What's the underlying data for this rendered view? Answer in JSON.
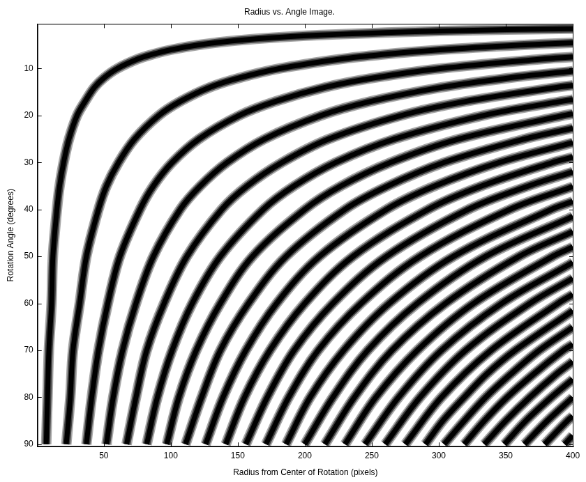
{
  "chart_data": {
    "type": "line",
    "title": "Radius vs. Angle Image.",
    "x_label": "Radius from Center of Rotation (pixels)",
    "y_label": "Rotation Angle (degrees)",
    "xlim": [
      0.5,
      400.5
    ],
    "ylim": [
      90.5,
      0.5
    ],
    "xticks": [
      50,
      100,
      150,
      200,
      250,
      300,
      350,
      400
    ],
    "yticks": [
      10,
      20,
      30,
      40,
      50,
      60,
      70,
      80,
      90
    ],
    "grid": false,
    "color": "#000000",
    "series": [
      {
        "x": [
          400,
          301,
          201,
          150,
          120,
          100,
          86,
          75,
          60,
          50,
          43,
          36,
          30,
          24,
          20,
          17,
          15,
          12,
          11,
          9,
          8,
          7
        ],
        "y": [
          1.5,
          2,
          3,
          4,
          5,
          6,
          7,
          8,
          10,
          12,
          14,
          17,
          20,
          25,
          30,
          35,
          40,
          50,
          60,
          70,
          80,
          90
        ]
      },
      {
        "x": [
          400,
          361,
          301,
          258,
          226,
          181,
          151,
          129,
          107,
          91,
          73,
          61,
          52,
          46,
          37,
          32,
          27,
          25,
          22
        ],
        "y": [
          4.51,
          5,
          6,
          7,
          8,
          10,
          12,
          14,
          17,
          20,
          25,
          30,
          35,
          40,
          50,
          60,
          70,
          80,
          90
        ]
      },
      {
        "x": [
          400,
          376,
          301,
          251,
          215,
          178,
          151,
          121,
          101,
          87,
          77,
          62,
          53,
          46,
          41,
          37
        ],
        "y": [
          7.53,
          8,
          10,
          12,
          14,
          17,
          20,
          25,
          30,
          35,
          40,
          50,
          60,
          70,
          80,
          90
        ]
      },
      {
        "x": [
          400,
          352,
          302,
          249,
          212,
          170,
          142,
          122,
          107,
          87,
          74,
          64,
          57,
          52
        ],
        "y": [
          10.54,
          12,
          14,
          17,
          20,
          25,
          30,
          35,
          40,
          50,
          60,
          70,
          80,
          90
        ]
      },
      {
        "x": [
          400,
          388,
          320,
          272,
          218,
          183,
          157,
          138,
          112,
          95,
          82,
          74,
          67
        ],
        "y": [
          13.57,
          14,
          17,
          20,
          25,
          30,
          35,
          40,
          50,
          60,
          70,
          80,
          90
        ]
      },
      {
        "x": [
          400,
          391,
          333,
          267,
          223,
          192,
          169,
          137,
          116,
          101,
          90,
          82
        ],
        "y": [
          16.6,
          17,
          20,
          25,
          30,
          35,
          40,
          50,
          60,
          70,
          80,
          90
        ]
      },
      {
        "x": [
          400,
          393,
          315,
          264,
          227,
          200,
          161,
          137,
          119,
          106,
          97
        ],
        "y": [
          19.65,
          20,
          25,
          30,
          35,
          40,
          50,
          60,
          70,
          80,
          90
        ]
      },
      {
        "x": [
          400,
          364,
          304,
          262,
          230,
          186,
          158,
          137,
          123,
          111
        ],
        "y": [
          22.71,
          25,
          30,
          35,
          40,
          50,
          60,
          70,
          80,
          90
        ]
      },
      {
        "x": [
          400,
          345,
          297,
          261,
          211,
          179,
          156,
          139,
          126
        ],
        "y": [
          25.79,
          30,
          35,
          40,
          50,
          60,
          70,
          80,
          90
        ]
      },
      {
        "x": [
          400,
          385,
          332,
          292,
          236,
          200,
          174,
          155,
          141
        ],
        "y": [
          28.88,
          30,
          35,
          40,
          50,
          60,
          70,
          80,
          90
        ]
      },
      {
        "x": [
          400,
          367,
          322,
          261,
          221,
          192,
          172,
          156
        ],
        "y": [
          32,
          35,
          40,
          50,
          60,
          70,
          80,
          90
        ]
      },
      {
        "x": [
          400,
          353,
          286,
          242,
          210,
          188,
          171
        ],
        "y": [
          35.14,
          40,
          50,
          60,
          70,
          80,
          90
        ]
      },
      {
        "x": [
          400,
          384,
          311,
          263,
          229,
          204,
          186
        ],
        "y": [
          38.31,
          40,
          50,
          60,
          70,
          80,
          90
        ]
      },
      {
        "x": [
          400,
          335,
          284,
          247,
          221,
          200
        ],
        "y": [
          41.51,
          50,
          60,
          70,
          80,
          90
        ]
      },
      {
        "x": [
          400,
          360,
          305,
          265,
          237,
          215
        ],
        "y": [
          44.75,
          50,
          60,
          70,
          80,
          90
        ]
      },
      {
        "x": [
          400,
          385,
          326,
          284,
          253,
          230
        ],
        "y": [
          48.02,
          50,
          60,
          70,
          80,
          90
        ]
      },
      {
        "x": [
          400,
          347,
          302,
          270,
          245
        ],
        "y": [
          51.33,
          60,
          70,
          80,
          90
        ]
      },
      {
        "x": [
          400,
          368,
          320,
          286,
          260
        ],
        "y": [
          54.69,
          60,
          70,
          80,
          90
        ]
      },
      {
        "x": [
          400,
          389,
          339,
          302,
          275
        ],
        "y": [
          58.11,
          60,
          70,
          80,
          90
        ]
      },
      {
        "x": [
          400,
          357,
          336,
          319,
          303,
          290
        ],
        "y": [
          61.58,
          70,
          75,
          80,
          85,
          90
        ]
      },
      {
        "x": [
          400,
          375,
          354,
          335,
          319,
          304
        ],
        "y": [
          65.11,
          70,
          75,
          80,
          85,
          90
        ]
      },
      {
        "x": [
          400,
          393,
          371,
          351,
          334,
          319
        ],
        "y": [
          68.72,
          70,
          75,
          80,
          85,
          90
        ]
      },
      {
        "x": [
          400,
          388,
          368,
          350,
          334
        ],
        "y": [
          72.4,
          75,
          80,
          85,
          90
        ]
      },
      {
        "x": [
          400,
          384,
          365,
          349
        ],
        "y": [
          76.18,
          80,
          85,
          90
        ]
      },
      {
        "x": [
          400,
          381,
          364
        ],
        "y": [
          80.05,
          85,
          90
        ]
      },
      {
        "x": [
          400,
          396,
          379
        ],
        "y": [
          84.04,
          85,
          90
        ]
      },
      {
        "x": [
          400,
          394
        ],
        "y": [
          88.15,
          90
        ]
      }
    ]
  }
}
